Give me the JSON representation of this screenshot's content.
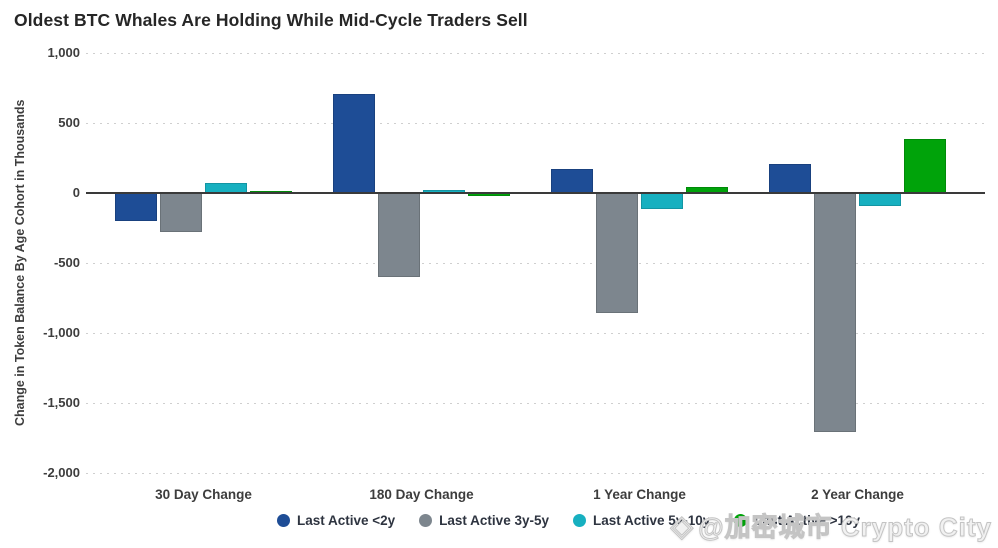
{
  "chart_data": {
    "type": "bar",
    "title": "Oldest BTC Whales Are Holding While Mid-Cycle Traders Sell",
    "xlabel": "",
    "ylabel": "Change in Token Balance By Age Cohort in Thousands",
    "ylim": [
      -2000,
      1000
    ],
    "yticks": [
      1000,
      500,
      0,
      -500,
      -1000,
      -1500,
      -2000
    ],
    "ytick_labels": [
      "1,000",
      "500",
      "0",
      "-500",
      "-1,000",
      "-1,500",
      "-2,000"
    ],
    "grid": "horizontal-dotted",
    "legend_position": "bottom",
    "categories": [
      "30 Day Change",
      "180 Day Change",
      "1 Year Change",
      "2 Year Change"
    ],
    "series": [
      {
        "name": "Last Active <2y",
        "color": "#1e4d96",
        "values": [
          -200,
          710,
          175,
          205
        ]
      },
      {
        "name": "Last Active 3y-5y",
        "color": "#7d868e",
        "values": [
          -275,
          -600,
          -860,
          -1710
        ]
      },
      {
        "name": "Last Active 5y-10y",
        "color": "#17b0c0",
        "values": [
          75,
          20,
          -115,
          -90
        ]
      },
      {
        "name": "Last Active >10y",
        "color": "#00a30a",
        "values": [
          10,
          -20,
          40,
          385
        ]
      }
    ]
  },
  "colors": {
    "zero_line": "#3a3a3a",
    "gridline": "#cfcfcf",
    "axis_text": "#3d3d3d",
    "title_text": "#262626"
  },
  "watermark": {
    "icon": "◈",
    "text": "@加密城市 Crypto City"
  }
}
